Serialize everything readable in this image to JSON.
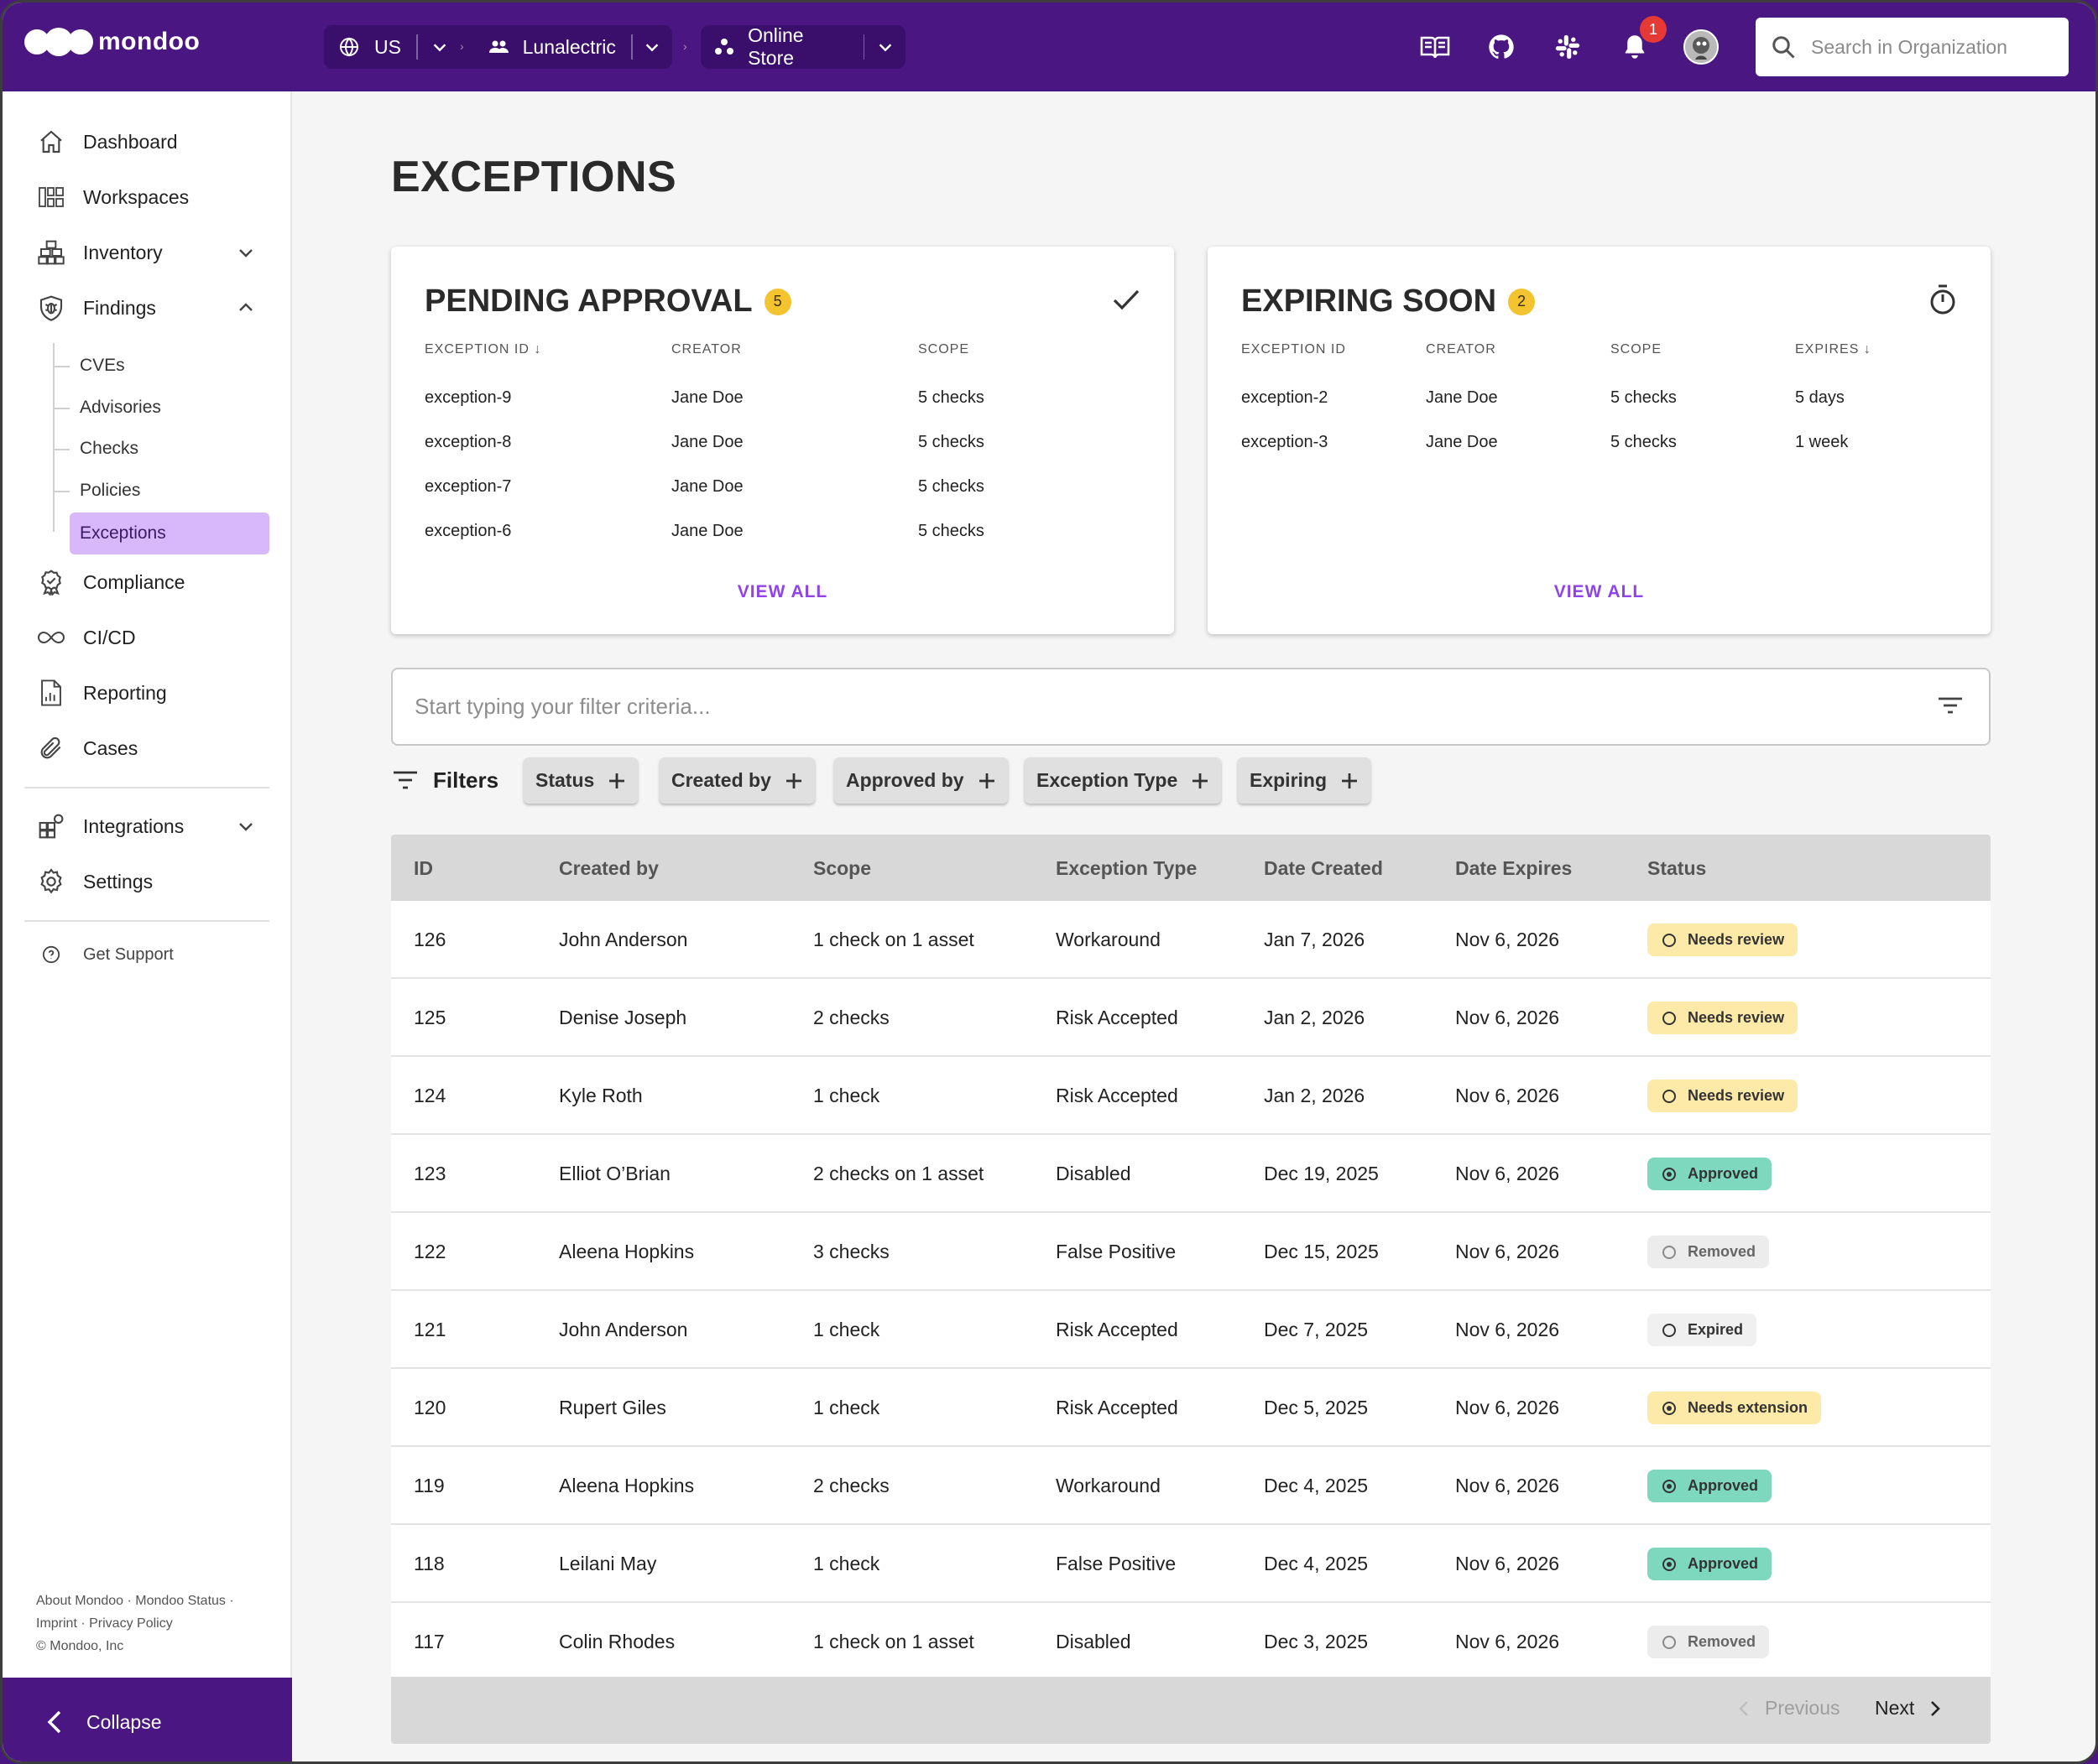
{
  "brand": {
    "name": "mondoo"
  },
  "topbar": {
    "region": "US",
    "organization": "Lunalectric",
    "space": "Online Store",
    "notification_count": "1",
    "search_placeholder": "Search in Organization",
    "icons": [
      "docs-book-icon",
      "github-icon",
      "slack-icon",
      "bell-icon",
      "avatar"
    ]
  },
  "sidebar": {
    "items": [
      {
        "label": "Dashboard",
        "icon": "home-icon"
      },
      {
        "label": "Workspaces",
        "icon": "workspaces-icon"
      },
      {
        "label": "Inventory",
        "icon": "inventory-icon"
      },
      {
        "label": "Findings",
        "icon": "shield-bug-icon"
      },
      {
        "label": "Compliance",
        "icon": "badge-icon"
      },
      {
        "label": "CI/CD",
        "icon": "infinity-icon"
      },
      {
        "label": "Reporting",
        "icon": "report-icon"
      },
      {
        "label": "Cases",
        "icon": "paperclip-icon"
      },
      {
        "label": "Integrations",
        "icon": "integrations-icon"
      },
      {
        "label": "Settings",
        "icon": "gear-icon"
      },
      {
        "label": "Get Support",
        "icon": "help-icon"
      }
    ],
    "findings_sub": [
      "CVEs",
      "Advisories",
      "Checks",
      "Policies",
      "Exceptions"
    ],
    "footer": {
      "about": "About Mondoo",
      "status": "Mondoo Status",
      "imprint": "Imprint",
      "privacy": "Privacy Policy",
      "copyright": "© Mondoo, Inc"
    },
    "collapse_label": "Collapse"
  },
  "main": {
    "title": "EXCEPTIONS",
    "pending": {
      "title": "PENDING APPROVAL",
      "count": "5",
      "headers": [
        "EXCEPTION ID",
        "CREATOR",
        "SCOPE"
      ],
      "rows": [
        [
          "exception-9",
          "Jane Doe",
          "5 checks"
        ],
        [
          "exception-8",
          "Jane Doe",
          "5 checks"
        ],
        [
          "exception-7",
          "Jane Doe",
          "5 checks"
        ],
        [
          "exception-6",
          "Jane Doe",
          "5 checks"
        ]
      ],
      "view_all": "VIEW ALL"
    },
    "expiring": {
      "title": "EXPIRING SOON",
      "count": "2",
      "headers": [
        "EXCEPTION ID",
        "CREATOR",
        "SCOPE",
        "EXPIRES"
      ],
      "rows": [
        [
          "exception-2",
          "Jane Doe",
          "5 checks",
          "5 days"
        ],
        [
          "exception-3",
          "Jane Doe",
          "5 checks",
          "1 week"
        ]
      ],
      "view_all": "VIEW ALL"
    },
    "filter_placeholder": "Start typing your filter criteria...",
    "filters_label": "Filters",
    "chips": [
      "Status",
      "Created by",
      "Approved by",
      "Exception Type",
      "Expiring"
    ],
    "table": {
      "headers": [
        "ID",
        "Created by",
        "Scope",
        "Exception Type",
        "Date Created",
        "Date Expires",
        "Status"
      ],
      "rows": [
        [
          "126",
          "John Anderson",
          "1 check on 1 asset",
          "Workaround",
          "Jan 7, 2026",
          "Nov 6, 2026",
          "Needs review"
        ],
        [
          "125",
          "Denise Joseph",
          "2 checks",
          "Risk Accepted",
          "Jan 2, 2026",
          "Nov 6, 2026",
          "Needs review"
        ],
        [
          "124",
          "Kyle Roth",
          "1 check",
          "Risk Accepted",
          "Jan 2, 2026",
          "Nov 6, 2026",
          "Needs review"
        ],
        [
          "123",
          "Elliot O’Brian",
          "2 checks on 1 asset",
          "Disabled",
          "Dec 19, 2025",
          "Nov 6, 2026",
          "Approved"
        ],
        [
          "122",
          "Aleena Hopkins",
          "3 checks",
          "False Positive",
          "Dec 15, 2025",
          "Nov 6, 2026",
          "Removed"
        ],
        [
          "121",
          "John Anderson",
          "1 check",
          "Risk Accepted",
          "Dec 7, 2025",
          "Nov 6, 2026",
          "Expired"
        ],
        [
          "120",
          "Rupert Giles",
          "1 check",
          "Risk Accepted",
          "Dec 5, 2025",
          "Nov 6, 2026",
          "Needs extension"
        ],
        [
          "119",
          "Aleena Hopkins",
          "2 checks",
          "Workaround",
          "Dec 4, 2025",
          "Nov 6, 2026",
          "Approved"
        ],
        [
          "118",
          "Leilani May",
          "1 check",
          "False Positive",
          "Dec 4, 2025",
          "Nov 6, 2026",
          "Approved"
        ],
        [
          "117",
          "Colin Rhodes",
          "1 check on 1 asset",
          "Disabled",
          "Dec 3, 2025",
          "Nov 6, 2026",
          "Removed"
        ]
      ],
      "pagination": {
        "previous": "Previous",
        "next": "Next"
      }
    }
  },
  "colors": {
    "brand_purple": "#4a1782",
    "accent_purple": "#8e44e8",
    "selected_bg": "#d8b8fb",
    "needs_review": "#fde9a8",
    "approved": "#7ed8bd",
    "removed": "#ececec",
    "badge_yellow": "#f4c430",
    "notification_red": "#e53935"
  }
}
